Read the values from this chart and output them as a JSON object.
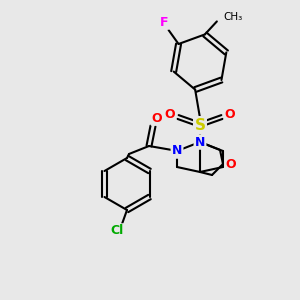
{
  "bg_color": "#e8e8e8",
  "bond_color": "#000000",
  "atom_colors": {
    "F": "#ff00ff",
    "Cl": "#00aa00",
    "O": "#ff0000",
    "N": "#0000ff",
    "S": "#cccc00",
    "C": "#000000"
  },
  "figsize": [
    3.0,
    3.0
  ],
  "dpi": 100
}
